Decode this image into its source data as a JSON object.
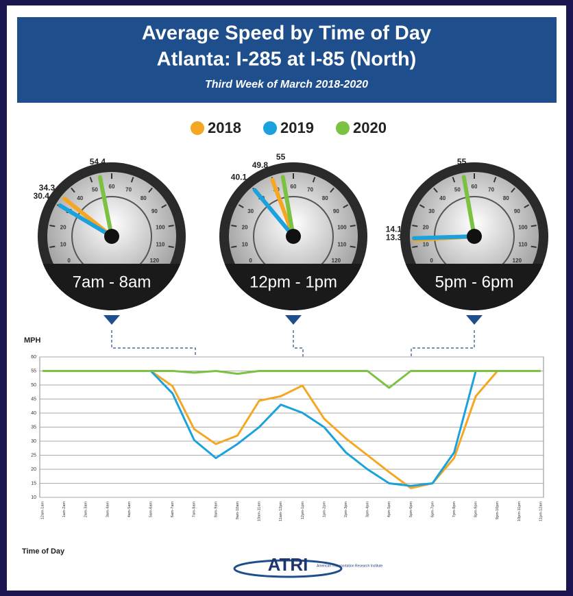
{
  "header": {
    "title_line1": "Average Speed by Time of Day",
    "title_line2": "Atlanta: I-285 at I-85 (North)",
    "subtitle": "Third Week of March 2018-2020"
  },
  "gauges": {
    "range": [
      0,
      120
    ],
    "ticks": [
      0,
      10,
      20,
      30,
      40,
      50,
      60,
      70,
      80,
      90,
      100,
      110,
      120
    ],
    "items": [
      {
        "label": "7am - 8am",
        "values": [
          34.3,
          30.4,
          54.4
        ]
      },
      {
        "label": "12pm - 1pm",
        "values": [
          49.8,
          40.1,
          55
        ]
      },
      {
        "label": "5pm - 6pm",
        "values": [
          13.3,
          14.1,
          55
        ]
      }
    ]
  },
  "chart_data": {
    "type": "line",
    "y_label": "MPH",
    "x_label": "Time of Day",
    "categories": [
      "12am-1am",
      "1am-2am",
      "2am-3am",
      "3am-4am",
      "4am-5am",
      "5am-6am",
      "6am-7am",
      "7am-8am",
      "8am-9am",
      "9am-10am",
      "10am-11am",
      "11am-12pm",
      "12pm-1pm",
      "1pm-2pm",
      "2pm-3pm",
      "3pm-4pm",
      "4pm-5pm",
      "5pm-6pm",
      "6pm-7pm",
      "7pm-8pm",
      "8pm-9pm",
      "9pm-10pm",
      "10pm-11pm",
      "11pm-12am"
    ],
    "series": [
      {
        "name": "2018",
        "color": "#f5a623",
        "values": [
          55,
          55,
          55,
          55,
          55,
          55,
          49.6,
          34.3,
          29,
          32,
          44.4,
          46,
          49.8,
          38,
          31,
          25,
          19,
          13.3,
          15,
          24,
          46,
          55,
          null,
          null
        ]
      },
      {
        "name": "2019",
        "color": "#1ba1dc",
        "values": [
          55,
          55,
          55,
          55,
          55,
          55,
          47,
          30.4,
          24,
          29,
          35,
          43,
          40.1,
          35,
          26,
          20,
          15,
          14.1,
          15,
          26,
          55,
          55,
          null,
          null
        ]
      },
      {
        "name": "2020",
        "color": "#7cc242",
        "values": [
          55,
          55,
          55,
          55,
          55,
          55,
          55,
          54.4,
          55,
          54,
          55,
          55,
          55,
          55,
          55,
          55,
          49,
          55,
          55,
          55,
          55,
          55,
          55,
          55
        ]
      }
    ],
    "ylim": [
      10,
      60
    ],
    "yticks": [
      10,
      15,
      20,
      25,
      30,
      35,
      40,
      45,
      50,
      55,
      60
    ],
    "grid": true
  },
  "logo": {
    "name": "ATRI",
    "subtitle": "American Transportation Research Institute"
  }
}
